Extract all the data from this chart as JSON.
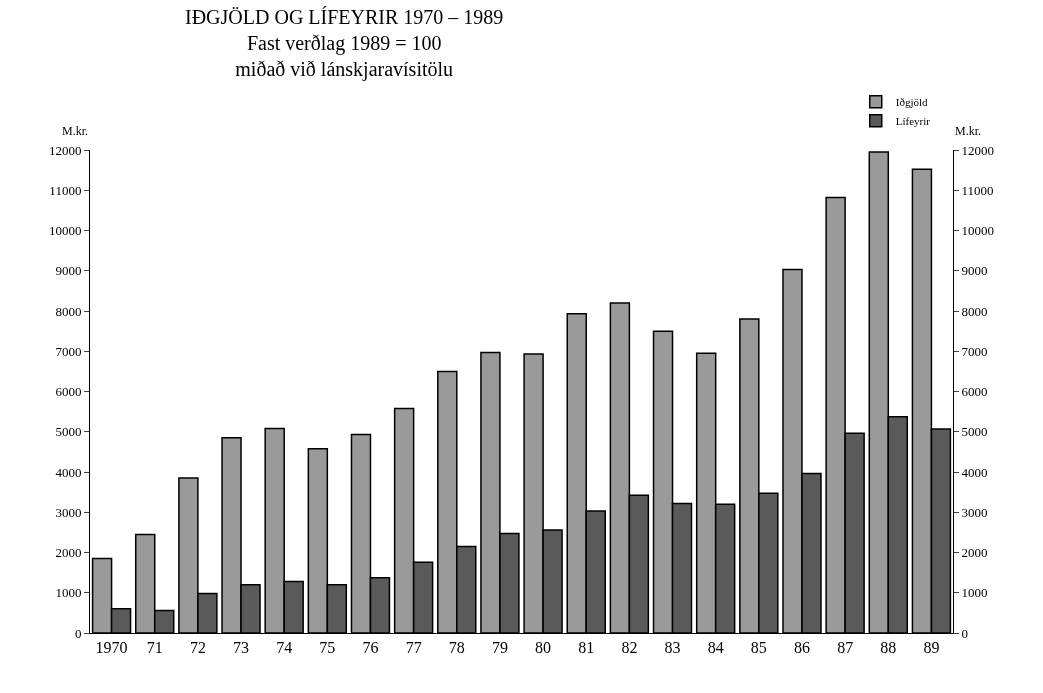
{
  "chart_data": {
    "type": "bar",
    "title": "IÐGJÖLD OG LÍFEYRIR 1970 – 1989",
    "subtitle": "Fast verðlag 1989 = 100\nmiðað við lánskjaravísitölu",
    "categories": [
      "1970",
      "71",
      "72",
      "73",
      "74",
      "75",
      "76",
      "77",
      "78",
      "79",
      "80",
      "81",
      "82",
      "83",
      "84",
      "85",
      "86",
      "87",
      "88",
      "89"
    ],
    "series": [
      {
        "name": "Iðgjöld",
        "color": "#9a9a9a",
        "values": [
          1850,
          2450,
          3850,
          4850,
          5080,
          4580,
          4930,
          5580,
          6500,
          6970,
          6930,
          7930,
          8200,
          7500,
          6950,
          7800,
          9030,
          10820,
          11950,
          11520
        ]
      },
      {
        "name": "Lífeyrir",
        "color": "#5a5a5a",
        "values": [
          600,
          560,
          980,
          1200,
          1280,
          1200,
          1370,
          1760,
          2150,
          2470,
          2560,
          3030,
          3420,
          3220,
          3200,
          3470,
          3960,
          4960,
          5370,
          5070
        ]
      }
    ],
    "ylabel": "M.kr.",
    "y2label": "M.kr.",
    "ylim": [
      0,
      12000
    ],
    "yticks": [
      0,
      1000,
      2000,
      3000,
      4000,
      5000,
      6000,
      7000,
      8000,
      9000,
      10000,
      11000,
      12000
    ],
    "y2lim": [
      0,
      12000
    ],
    "y2ticks": [
      0,
      1000,
      2000,
      3000,
      4000,
      5000,
      6000,
      7000,
      8000,
      9000,
      10000,
      11000,
      12000
    ],
    "grid": false,
    "legend": "top right"
  }
}
